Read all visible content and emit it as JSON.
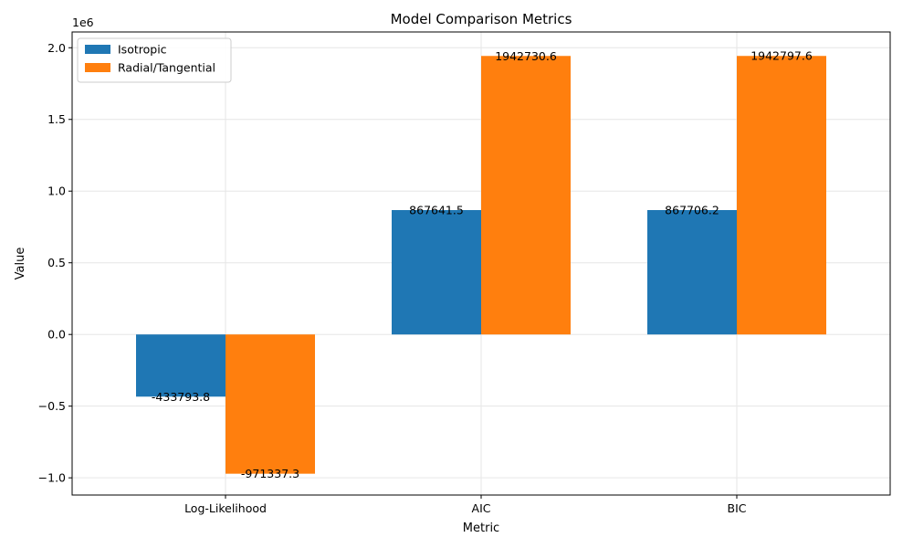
{
  "chart_data": {
    "type": "bar",
    "title": "Model Comparison Metrics",
    "xlabel": "Metric",
    "ylabel": "Value",
    "offset_text": "1e6",
    "categories": [
      "Log-Likelihood",
      "AIC",
      "BIC"
    ],
    "series": [
      {
        "name": "Isotropic",
        "color": "#1f77b4",
        "values": [
          -433793.8,
          867641.5,
          867706.2
        ],
        "labels": [
          "-433793.8",
          "867641.5",
          "867706.2"
        ]
      },
      {
        "name": "Radial/Tangential",
        "color": "#ff7f0e",
        "values": [
          -971337.3,
          1942730.6,
          1942797.6
        ],
        "labels": [
          "-971337.3",
          "1942730.6",
          "1942797.6"
        ]
      }
    ],
    "ylim": [
      -1120000,
      2110000
    ],
    "yticks": [
      -1000000,
      -500000,
      0,
      500000,
      1000000,
      1500000,
      2000000
    ],
    "ytick_labels": [
      "−1.0",
      "−0.5",
      "0.0",
      "0.5",
      "1.0",
      "1.5",
      "2.0"
    ],
    "grid": true,
    "legend_position": "top-left"
  }
}
